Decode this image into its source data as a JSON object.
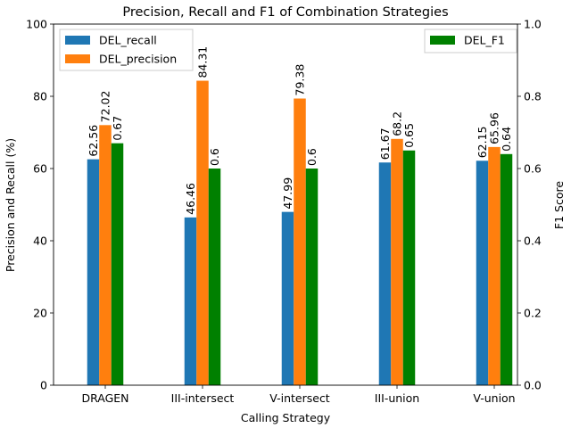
{
  "chart_data": {
    "type": "bar",
    "title": "Precision, Recall and F1 of Combination Strategies",
    "xlabel": "Calling Strategy",
    "ylabel": "Precision and Recall (%)",
    "y2label": "F1 Score",
    "categories": [
      "DRAGEN",
      "III-intersect",
      "V-intersect",
      "III-union",
      "V-union"
    ],
    "ylim": [
      0,
      100
    ],
    "y2lim": [
      0,
      1.0
    ],
    "yticks": [
      "0",
      "20",
      "40",
      "60",
      "80",
      "100"
    ],
    "y2ticks": [
      "0.0",
      "0.2",
      "0.4",
      "0.6",
      "0.8",
      "1.0"
    ],
    "series": [
      {
        "name": "DEL_recall",
        "axis": "left",
        "color": "#1f77b4",
        "values": [
          62.56,
          46.46,
          47.99,
          61.67,
          62.15
        ],
        "labels": [
          "62.56",
          "46.46",
          "47.99",
          "61.67",
          "62.15"
        ]
      },
      {
        "name": "DEL_precision",
        "axis": "left",
        "color": "#ff7f0e",
        "values": [
          72.02,
          84.31,
          79.38,
          68.2,
          65.96
        ],
        "labels": [
          "72.02",
          "84.31",
          "79.38",
          "68.2",
          "65.96"
        ]
      },
      {
        "name": "DEL_F1",
        "axis": "right",
        "color": "#008000",
        "values": [
          0.67,
          0.6,
          0.6,
          0.65,
          0.64
        ],
        "labels": [
          "0.67",
          "0.6",
          "0.6",
          "0.65",
          "0.64"
        ]
      }
    ],
    "legend_left": "upper-left",
    "legend_right": "upper-right",
    "grid": false
  }
}
